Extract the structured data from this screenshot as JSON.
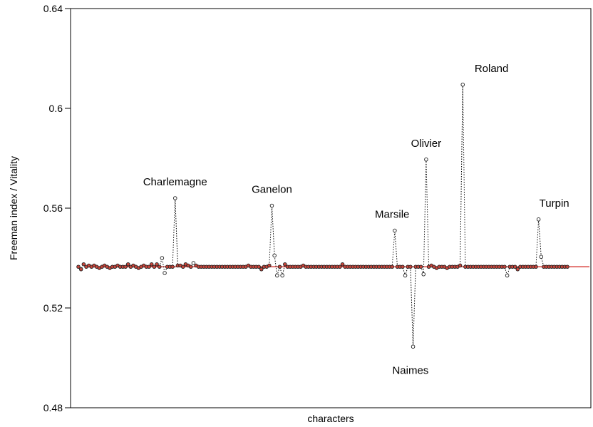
{
  "chart_data": {
    "type": "scatter",
    "title": "",
    "xlabel": "characters",
    "ylabel": "Freeman index / Vitality",
    "ylim": [
      0.48,
      0.64
    ],
    "xlim": [
      -3,
      196
    ],
    "yticks": [
      0.48,
      0.52,
      0.56,
      0.6,
      0.64
    ],
    "ytick_labels": [
      "0.48",
      "0.52",
      "0.56",
      "0.6",
      "0.64"
    ],
    "grid": false,
    "baseline": 0.5365,
    "colors": {
      "baseline": "#d9413c",
      "point_fill": "#c8463c",
      "point_stroke": "#222222",
      "connector": "#000000"
    },
    "series": [
      {
        "values": [
          0.5365,
          0.5355,
          0.5375,
          0.5365,
          0.537,
          0.5365,
          0.537,
          0.5365,
          0.536,
          0.5365,
          0.537,
          0.5365,
          0.536,
          0.5365,
          0.5365,
          0.537,
          0.5365,
          0.5365,
          0.5365,
          0.5375,
          0.5365,
          0.537,
          0.5365,
          0.536,
          0.5365,
          0.537,
          0.5365,
          0.5365,
          0.5375,
          0.5365,
          0.5375,
          0.5365,
          0.54,
          0.534,
          0.5365,
          0.5365,
          0.5365,
          0.564,
          0.537,
          0.537,
          0.5365,
          0.5375,
          0.537,
          0.5365,
          0.538,
          0.537,
          0.5365,
          0.5365,
          0.5365,
          0.5365,
          0.5365,
          0.5365,
          0.5365,
          0.5365,
          0.5365,
          0.5365,
          0.5365,
          0.5365,
          0.5365,
          0.5365,
          0.5365,
          0.5365,
          0.5365,
          0.5365,
          0.5365,
          0.537,
          0.5365,
          0.5365,
          0.5365,
          0.5365,
          0.5355,
          0.5365,
          0.5365,
          0.537,
          0.561,
          0.541,
          0.533,
          0.5365,
          0.533,
          0.5375,
          0.5365,
          0.5365,
          0.5365,
          0.5365,
          0.5365,
          0.5365,
          0.537,
          0.5365,
          0.5365,
          0.5365,
          0.5365,
          0.5365,
          0.5365,
          0.5365,
          0.5365,
          0.5365,
          0.5365,
          0.5365,
          0.5365,
          0.5365,
          0.5365,
          0.5375,
          0.5365,
          0.5365,
          0.5365,
          0.5365,
          0.5365,
          0.5365,
          0.5365,
          0.5365,
          0.5365,
          0.5365,
          0.5365,
          0.5365,
          0.5365,
          0.5365,
          0.5365,
          0.5365,
          0.5365,
          0.5365,
          0.5365,
          0.551,
          0.5365,
          0.5365,
          0.5365,
          0.533,
          0.5365,
          0.5365,
          0.5045,
          0.5365,
          0.5365,
          0.5365,
          0.5335,
          0.5795,
          0.5365,
          0.537,
          0.5365,
          0.536,
          0.5365,
          0.5365,
          0.5365,
          0.536,
          0.5365,
          0.5365,
          0.5365,
          0.5365,
          0.537,
          0.6095,
          0.5365,
          0.5365,
          0.5365,
          0.5365,
          0.5365,
          0.5365,
          0.5365,
          0.5365,
          0.5365,
          0.5365,
          0.5365,
          0.5365,
          0.5365,
          0.5365,
          0.5365,
          0.5365,
          0.533,
          0.5365,
          0.5365,
          0.5365,
          0.5355,
          0.5365,
          0.5365,
          0.5365,
          0.5365,
          0.5365,
          0.5365,
          0.5365,
          0.5555,
          0.5405,
          0.5365,
          0.5365,
          0.5365,
          0.5365,
          0.5365,
          0.5365,
          0.5365,
          0.5365,
          0.5365,
          0.5365
        ]
      }
    ],
    "annotations": [
      {
        "text": "Charlemagne",
        "x": 37,
        "y": 0.564
      },
      {
        "text": "Ganelon",
        "x": 74,
        "y": 0.561
      },
      {
        "text": "Marsile",
        "x": 120,
        "y": 0.551
      },
      {
        "text": "Naimes",
        "x": 127,
        "y": 0.5045
      },
      {
        "text": "Olivier",
        "x": 133,
        "y": 0.5795
      },
      {
        "text": "Roland",
        "x": 158,
        "y": 0.6095
      },
      {
        "text": "Turpin",
        "x": 182,
        "y": 0.5555
      }
    ]
  }
}
